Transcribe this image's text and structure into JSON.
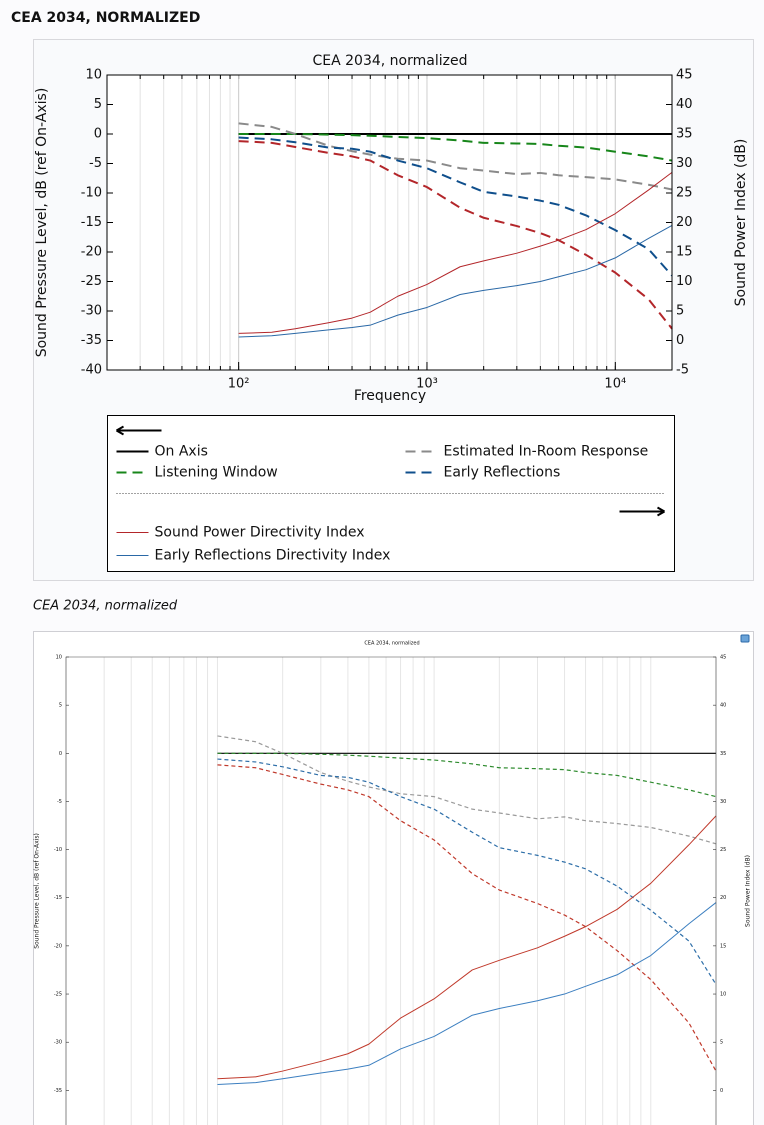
{
  "header": "CEA 2034, NORMALIZED",
  "caption": "CEA 2034, normalized",
  "chart_data": [
    {
      "type": "line",
      "title": "CEA 2034, normalized",
      "xlabel": "Frequency",
      "ylabel": "Sound Pressure Level, dB (ref On-Axis)",
      "y2label": "Sound Power Index (dB)",
      "xscale": "log",
      "xlim": [
        20,
        20000
      ],
      "xticks": [
        {
          "value": 100,
          "label": "10²"
        },
        {
          "value": 1000,
          "label": "10³"
        },
        {
          "value": 10000,
          "label": "10⁴"
        }
      ],
      "ylim": [
        -40,
        10
      ],
      "yticks": [
        10,
        5,
        0,
        -5,
        -10,
        -15,
        -20,
        -25,
        -30,
        -35,
        -40
      ],
      "y2lim": [
        -5,
        45
      ],
      "y2ticks": [
        45,
        40,
        35,
        30,
        25,
        20,
        15,
        10,
        5,
        0,
        -5
      ],
      "grid": true,
      "legend": true,
      "x": [
        100,
        150,
        200,
        300,
        400,
        500,
        700,
        1000,
        1500,
        2000,
        3000,
        4000,
        5000,
        7000,
        10000,
        15000,
        20000
      ],
      "series": [
        {
          "name": "On Axis",
          "color": "#000000",
          "style": "solid",
          "values": [
            0,
            0,
            0,
            0,
            0,
            0,
            0,
            0,
            0,
            0,
            0,
            0,
            0,
            0,
            0,
            0,
            0
          ]
        },
        {
          "name": "Listening Window",
          "color": "#17861a",
          "style": "dashed",
          "values": [
            0,
            0,
            0,
            -0.1,
            -0.2,
            -0.3,
            -0.5,
            -0.7,
            -1.1,
            -1.5,
            -1.6,
            -1.7,
            -2,
            -2.3,
            -3,
            -3.8,
            -4.5
          ]
        },
        {
          "name": "Estimated In-Room Response",
          "color": "#8a8a8a",
          "style": "dashed",
          "values": [
            1.8,
            1.2,
            0,
            -2,
            -2.9,
            -3.5,
            -4.2,
            -4.5,
            -5.8,
            -6.2,
            -6.8,
            -6.6,
            -7,
            -7.3,
            -7.7,
            -8.6,
            -9.4
          ]
        },
        {
          "name": "Early Reflections",
          "color": "#0f4f8c",
          "style": "dashed",
          "values": [
            -0.6,
            -0.9,
            -1.4,
            -2.3,
            -2.5,
            -3,
            -4.5,
            -5.8,
            -8.2,
            -9.8,
            -10.6,
            -11.3,
            -12,
            -13.8,
            -16.3,
            -19.5,
            -24
          ]
        },
        {
          "color": "#b3262a",
          "style": "dashed",
          "values": [
            -1.2,
            -1.5,
            -2.2,
            -3.2,
            -3.8,
            -4.5,
            -7,
            -9,
            -12.5,
            -14.2,
            -15.6,
            -16.8,
            -18,
            -20.5,
            -23.5,
            -28,
            -33
          ]
        },
        {
          "name": "Sound Power Directivity Index",
          "color": "#b3262a",
          "style": "solid",
          "axis": "y2",
          "values": [
            1.2,
            1.4,
            2,
            3,
            3.8,
            4.8,
            7.5,
            9.5,
            12.5,
            13.5,
            14.8,
            16,
            17,
            18.8,
            21.5,
            25.5,
            28.5
          ]
        },
        {
          "name": "Early Reflections Directivity Index",
          "color": "#2a68a6",
          "style": "solid",
          "axis": "y2",
          "values": [
            0.6,
            0.8,
            1.2,
            1.8,
            2.2,
            2.6,
            4.3,
            5.6,
            7.8,
            8.5,
            9.3,
            10,
            10.8,
            12,
            14,
            17.3,
            19.5
          ]
        }
      ]
    },
    {
      "type": "line",
      "title": "CEA 2034, normalized",
      "ylabel": "Sound Pressure Level, dB (ref On-Axis)",
      "y2label": "Sound Power Index (dB)",
      "xscale": "log",
      "xlim": [
        20,
        20000
      ],
      "ylim": [
        -38.6,
        10
      ],
      "yticks": [
        10,
        5,
        0,
        -5,
        -10,
        -15,
        -20,
        -25,
        -30,
        -35
      ],
      "y2lim": [
        -3.6,
        45
      ],
      "y2ticks": [
        45,
        40,
        35,
        30,
        25,
        20,
        15,
        10,
        5,
        0
      ],
      "grid": true,
      "legend": false,
      "x": [
        100,
        150,
        200,
        300,
        400,
        500,
        700,
        1000,
        1500,
        2000,
        3000,
        4000,
        5000,
        7000,
        10000,
        15000,
        20000
      ],
      "series": [
        {
          "name": "On Axis",
          "color": "#000000",
          "style": "solid",
          "values": [
            0,
            0,
            0,
            0,
            0,
            0,
            0,
            0,
            0,
            0,
            0,
            0,
            0,
            0,
            0,
            0,
            0
          ]
        },
        {
          "name": "Listening Window",
          "color": "#2e8b2e",
          "style": "dashed",
          "values": [
            0,
            0,
            0,
            -0.1,
            -0.2,
            -0.3,
            -0.5,
            -0.7,
            -1.1,
            -1.5,
            -1.6,
            -1.7,
            -2,
            -2.3,
            -3,
            -3.8,
            -4.5
          ]
        },
        {
          "name": "Estimated In-Room Response",
          "color": "#9a9a9a",
          "style": "dashed",
          "values": [
            1.8,
            1.2,
            0,
            -2,
            -2.9,
            -3.5,
            -4.2,
            -4.5,
            -5.8,
            -6.2,
            -6.8,
            -6.6,
            -7,
            -7.3,
            -7.7,
            -8.6,
            -9.4
          ]
        },
        {
          "name": "Early Reflections",
          "color": "#2d6ea8",
          "style": "dashed",
          "values": [
            -0.6,
            -0.9,
            -1.4,
            -2.3,
            -2.5,
            -3,
            -4.5,
            -5.8,
            -8.2,
            -9.8,
            -10.6,
            -11.3,
            -12,
            -13.8,
            -16.3,
            -19.5,
            -24
          ]
        },
        {
          "color": "#c0392b",
          "style": "dashed",
          "values": [
            -1.2,
            -1.5,
            -2.2,
            -3.2,
            -3.8,
            -4.5,
            -7,
            -9,
            -12.5,
            -14.2,
            -15.6,
            -16.8,
            -18,
            -20.5,
            -23.5,
            -28,
            -33
          ]
        },
        {
          "name": "Sound Power Directivity Index",
          "color": "#c0392b",
          "style": "solid",
          "axis": "y2",
          "values": [
            1.2,
            1.4,
            2,
            3,
            3.8,
            4.8,
            7.5,
            9.5,
            12.5,
            13.5,
            14.8,
            16,
            17,
            18.8,
            21.5,
            25.5,
            28.5
          ]
        },
        {
          "name": "Early Reflections Directivity Index",
          "color": "#3c7fc0",
          "style": "solid",
          "axis": "y2",
          "values": [
            0.6,
            0.8,
            1.2,
            1.8,
            2.2,
            2.6,
            4.3,
            5.6,
            7.8,
            8.5,
            9.3,
            10,
            10.8,
            12,
            14,
            17.3,
            19.5
          ]
        }
      ]
    }
  ]
}
